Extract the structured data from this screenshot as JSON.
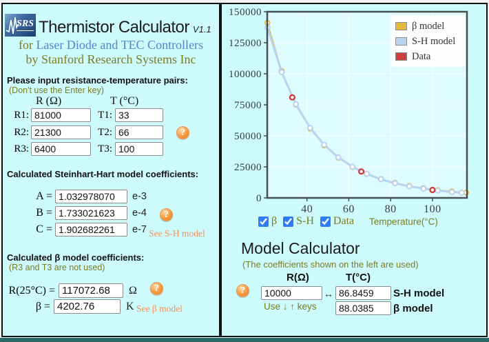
{
  "page": {
    "bg": "#cdfafa",
    "edge": "#f2f2f2",
    "bottom_strip": "#2d6868"
  },
  "colors": {
    "olive_text": "#7c7c21",
    "link_blue": "#4d86d4",
    "link_orange": "#f0935c",
    "help_icon_orange": "#f39237"
  },
  "header": {
    "logo_text": "SRS",
    "title": "Thermistor Calculator",
    "version": "V1.1",
    "subtitle_prefix": "for ",
    "subtitle_link": "Laser Diode and TEC Controllers",
    "byline": "by Stanford Research Systems Inc"
  },
  "rt_inputs": {
    "heading": "Please input resistance-temperature pairs:",
    "hint": "(Don't use the Enter key)",
    "r_header": "R (Ω)",
    "t_header": "T (°C)",
    "help_icon": "?",
    "rows": [
      {
        "r_label": "R1:",
        "r_value": "81000",
        "t_label": "T1:",
        "t_value": "33"
      },
      {
        "r_label": "R2:",
        "r_value": "21300",
        "t_label": "T2:",
        "t_value": "66"
      },
      {
        "r_label": "R3:",
        "r_value": "6400",
        "t_label": "T3:",
        "t_value": "100"
      }
    ]
  },
  "sh_section": {
    "heading": "Calculated Steinhart-Hart model coefficients:",
    "help_icon": "?",
    "link": "See S-H model",
    "rows": [
      {
        "label": "A =",
        "value": "1.032978070",
        "exp": "e-3"
      },
      {
        "label": "B =",
        "value": "1.733021623",
        "exp": "e-4"
      },
      {
        "label": "C =",
        "value": "1.902682261",
        "exp": "e-7"
      }
    ]
  },
  "beta_section": {
    "heading": "Calculated β model coefficients:",
    "hint": "(R3 and T3 are not used)",
    "help_icon": "?",
    "r25_label": "R(25°C) =",
    "r25_value": "117072.68",
    "r25_unit": "Ω",
    "beta_label": "β =",
    "beta_value": "4202.76",
    "beta_unit": "K",
    "link": "See β model"
  },
  "chart_controls": {
    "checkbox_color": "#2f7df6",
    "checkboxes": [
      {
        "label": "β",
        "checked": true
      },
      {
        "label": "S-H",
        "checked": true
      },
      {
        "label": "Data",
        "checked": true
      }
    ],
    "axis_label": "Temperature(°C)"
  },
  "model_calc": {
    "title": "Model Calculator",
    "hint": "(The coefficients shown on the left are used)",
    "help_icon": "?",
    "r_header": "R(Ω)",
    "t_header": "T(°C)",
    "r_value": "10000",
    "arrow": "↔",
    "sh_value": "86.8459",
    "sh_label": "S-H model",
    "keys_hint": "Use ↓ ↑ keys",
    "beta_value": "88.0385",
    "beta_label": "β model"
  },
  "chart_data": {
    "type": "line",
    "title": "",
    "xlabel": "Temperature(°C)",
    "ylabel": "",
    "xlim": [
      21,
      116.5
    ],
    "ylim": [
      0,
      150000
    ],
    "x_ticks": [
      40,
      60,
      80,
      100
    ],
    "y_ticks": [
      0,
      25000,
      50000,
      75000,
      100000,
      125000,
      150000
    ],
    "grid": true,
    "legend_position": "top-right",
    "plot_bg": "#defbfd",
    "grid_color": "#f2fdff",
    "frame_color": "#454e50",
    "tick_text_color": "#3a3a3a",
    "legend": [
      {
        "name": "β model",
        "color": "#e2b93b"
      },
      {
        "name": "S-H model",
        "color": "#b9d2f0"
      },
      {
        "name": "Data",
        "color": "#cc4140"
      }
    ],
    "series": [
      {
        "name": "β model",
        "color": "#e2b93b",
        "line_width": 1.6,
        "marker_stroke": 1.8,
        "x": [
          21.1,
          27.9,
          34.7,
          41.5,
          48.2,
          55,
          61.8,
          68.6,
          75.4,
          82.1,
          88.9,
          95.7,
          102.5,
          109.3,
          116.1
        ],
        "y": [
          141130,
          102210,
          75090,
          55900,
          42310,
          32270,
          24880,
          19390,
          15250,
          12150,
          9730,
          7850,
          6390,
          5240,
          4320
        ]
      },
      {
        "name": "S-H model",
        "color": "#b9d2f0",
        "line_width": 3,
        "marker_stroke": 2,
        "x": [
          21.1,
          27.9,
          34.7,
          41.5,
          48.2,
          55,
          61.8,
          68.6,
          75.4,
          82.1,
          88.9,
          95.7,
          102.5,
          109.3,
          114.0
        ],
        "y": [
          137300,
          101270,
          75420,
          56380,
          42810,
          32590,
          25030,
          19345,
          15010,
          11800,
          9330,
          7390,
          5900,
          4740,
          4150
        ]
      },
      {
        "name": "Data",
        "color": "#cc4140",
        "markers_only": true,
        "marker_stroke": 2.4,
        "x": [
          33,
          66,
          100
        ],
        "y": [
          81000,
          21300,
          6400
        ]
      }
    ]
  }
}
